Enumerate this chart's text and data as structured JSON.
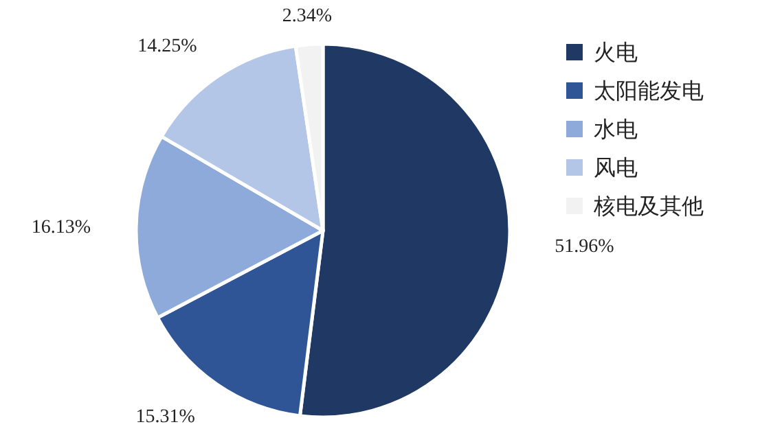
{
  "chart_data": {
    "type": "pie",
    "categories": [
      "火电",
      "太阳能发电",
      "水电",
      "风电",
      "核电及其他"
    ],
    "values": [
      51.96,
      15.31,
      16.13,
      14.25,
      2.34
    ],
    "colors": [
      "#203864",
      "#2f5597",
      "#8eaadb",
      "#b4c6e7",
      "#f2f2f2"
    ],
    "value_labels": [
      "51.96%",
      "15.31%",
      "16.13%",
      "14.25%",
      "2.34%"
    ],
    "legend": "right"
  }
}
